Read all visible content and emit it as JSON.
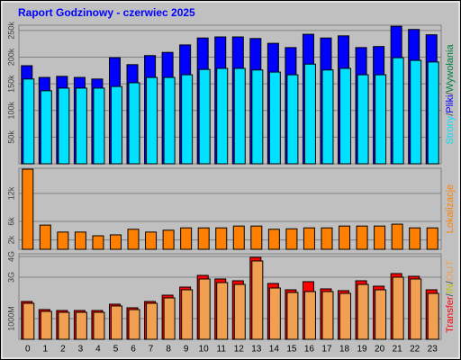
{
  "chart_data": [
    {
      "type": "bar",
      "title": "Raport Godzinowy -  czerwiec 2025",
      "ylim": [
        0,
        260000
      ],
      "yticks": [
        {
          "value": 50000,
          "label": "50k"
        },
        {
          "value": 100000,
          "label": "100k"
        },
        {
          "value": 150000,
          "label": "150k"
        },
        {
          "value": 200000,
          "label": "200k"
        },
        {
          "value": 250000,
          "label": "250k"
        }
      ],
      "grid": true,
      "series": [
        {
          "name": "Pliki",
          "color": "#0000ff",
          "values": [
            184000,
            162000,
            164000,
            162000,
            159000,
            199000,
            186000,
            203000,
            209000,
            223000,
            236000,
            238000,
            238000,
            235000,
            226000,
            218000,
            243000,
            236000,
            240000,
            218000,
            220000,
            258000,
            252000,
            242000
          ]
        },
        {
          "name": "Strony",
          "color": "#00e0ff",
          "values": [
            159000,
            137000,
            142000,
            142000,
            142000,
            145000,
            152000,
            162000,
            162000,
            167000,
            177000,
            179000,
            179000,
            176000,
            172000,
            167000,
            187000,
            176000,
            179000,
            167000,
            167000,
            199000,
            194000,
            191000
          ]
        }
      ],
      "legend_separator": "/",
      "legend_extra": {
        "text": "Wywołania",
        "color": "#008040"
      }
    },
    {
      "type": "bar",
      "ylim": [
        0,
        17400
      ],
      "yticks": [
        {
          "value": 2000,
          "label": "2k"
        },
        {
          "value": 6000,
          "label": "6k"
        },
        {
          "value": 12000,
          "label": "12k"
        }
      ],
      "grid": true,
      "series": [
        {
          "name": "Lokalizacje",
          "color": "#ff8000",
          "values": [
            17200,
            5200,
            3700,
            3700,
            2900,
            3100,
            4300,
            3700,
            4100,
            4600,
            4600,
            4600,
            5000,
            5000,
            4300,
            4400,
            4600,
            4600,
            5000,
            5000,
            5000,
            5400,
            4600,
            4600
          ]
        }
      ]
    },
    {
      "type": "bar",
      "ylim": [
        0,
        4130
      ],
      "yticks": [
        {
          "value": 1000,
          "label": "1000M"
        },
        {
          "value": 3000,
          "label": "3G"
        },
        {
          "value": 4000,
          "label": "4G"
        }
      ],
      "grid": true,
      "categories": [
        "0",
        "1",
        "2",
        "3",
        "4",
        "5",
        "6",
        "7",
        "8",
        "9",
        "10",
        "11",
        "12",
        "13",
        "14",
        "15",
        "16",
        "17",
        "18",
        "19",
        "20",
        "21",
        "22",
        "23"
      ],
      "series": [
        {
          "name": "Transfer",
          "color": "#ff0000",
          "values": [
            1826,
            1435,
            1391,
            1391,
            1391,
            1696,
            1522,
            1826,
            2130,
            2522,
            3087,
            2913,
            2826,
            3957,
            2696,
            2391,
            2783,
            2435,
            2348,
            2826,
            2565,
            3174,
            3043,
            2391
          ]
        },
        {
          "name": "OUT",
          "color": "#f0a050",
          "values": [
            1739,
            1348,
            1304,
            1304,
            1304,
            1609,
            1435,
            1739,
            2000,
            2391,
            2913,
            2739,
            2652,
            3783,
            2478,
            2261,
            2304,
            2304,
            2217,
            2652,
            2391,
            3000,
            2913,
            2217
          ]
        }
      ],
      "legend_separator": "/",
      "legend_extra": {
        "text": "IN",
        "color": "#c0c000"
      }
    }
  ]
}
